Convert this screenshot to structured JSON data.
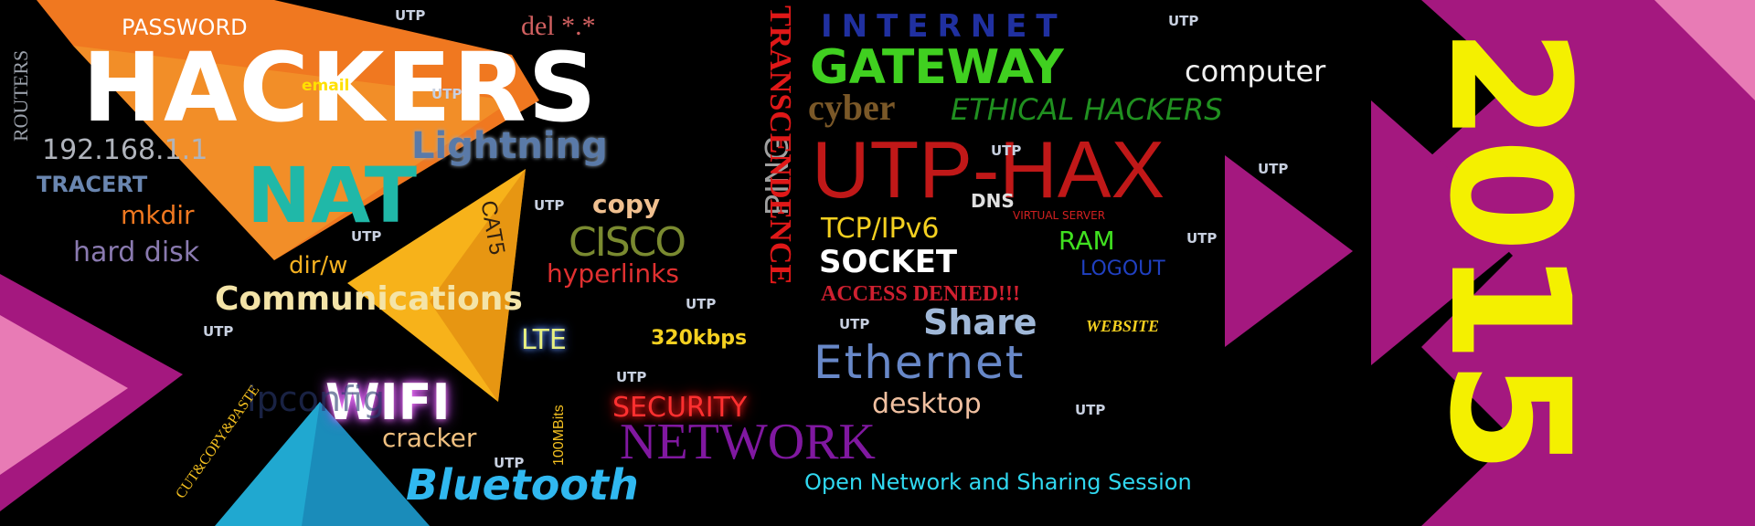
{
  "year": "2015",
  "colors": {
    "background": "#000000",
    "magenta": "#a4187f",
    "pink": "#e87bb5",
    "orange": "#f07820",
    "yellow_orange": "#f7b21a",
    "cyan": "#20a8d0",
    "yellow": "#f4f000"
  },
  "words": {
    "password": "PASSWORD",
    "hackers": "HACKERS",
    "email": "email",
    "routers": "ROUTERS",
    "ip": "192.168.1.1",
    "tracert": "TRACERT",
    "mkdir": "mkdir",
    "hard_disk": "hard disk",
    "nat": "NAT",
    "lightning": "Lightning",
    "del": "del *.*",
    "cat5": "CAT5",
    "copy": "copy",
    "cisco": "CISCO",
    "hyperlinks": "hyperlinks",
    "dirw": "dir/w",
    "communications": "Communications",
    "lte": "LTE",
    "kbps": "320kbps",
    "ping": "PING",
    "transcendence": "TRANSCENDENCE",
    "internet": "INTERNET",
    "gateway": "GATEWAY",
    "computer": "computer",
    "cyber": "cyber",
    "ethical_hackers": "ETHICAL HACKERS",
    "utp_hax": "UTP-HAX",
    "dns": "DNS",
    "virtual_server": "VIRTUAL SERVER",
    "tcpip": "TCP/IPv6",
    "ram": "RAM",
    "socket": "SOCKET",
    "logout": "LOGOUT",
    "access_denied": "ACCESS DENIED!!!",
    "share": "Share",
    "website": "WEBSITE",
    "ethernet": "Ethernet",
    "wifi": "WIFI",
    "ipconfig": "ipconfig",
    "cracker": "cracker",
    "mbits": "100MBits",
    "security": "SECURITY",
    "desktop": "desktop",
    "network": "NETWORK",
    "cut_copy_paste": "CUT&COPY&PASTE",
    "bluetooth": "Bluetooth",
    "open_network": "Open Network and Sharing Session",
    "utp": "UTP"
  }
}
